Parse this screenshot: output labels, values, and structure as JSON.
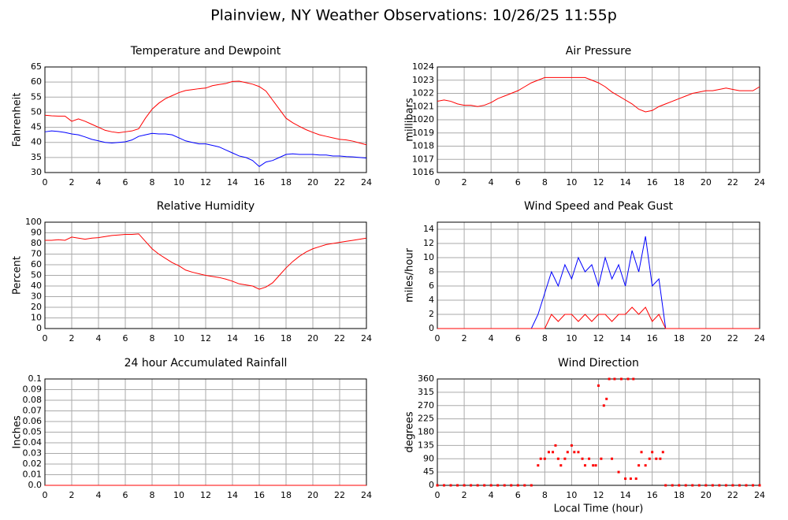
{
  "title": "Plainview, NY Weather Observations: 10/26/25 11:55p",
  "chart_data": [
    {
      "type": "line",
      "title": "Temperature and Dewpoint",
      "ylabel": "Fahrenheit",
      "x": [
        0,
        0.5,
        1,
        1.5,
        2,
        2.5,
        3,
        3.5,
        4,
        4.5,
        5,
        5.5,
        6,
        6.5,
        7,
        7.5,
        8,
        8.5,
        9,
        9.5,
        10,
        10.5,
        11,
        11.5,
        12,
        12.5,
        13,
        13.5,
        14,
        14.5,
        15,
        15.5,
        16,
        16.5,
        17,
        17.5,
        18,
        18.5,
        19,
        19.5,
        20,
        20.5,
        21,
        21.5,
        22,
        22.5,
        23,
        23.5,
        24
      ],
      "series": [
        {
          "color": "#ff0000",
          "values": [
            49,
            48.8,
            48.7,
            48.7,
            47,
            47.8,
            47,
            46,
            45,
            44,
            43.5,
            43.2,
            43.5,
            43.8,
            44.5,
            48,
            51,
            53,
            54.5,
            55.5,
            56.5,
            57.2,
            57.5,
            57.8,
            58,
            58.8,
            59.2,
            59.5,
            60.2,
            60.3,
            59.8,
            59.3,
            58.5,
            57,
            54,
            51,
            48,
            46.5,
            45.3,
            44.2,
            43.3,
            42.5,
            42,
            41.5,
            41,
            40.8,
            40.4,
            39.8,
            39.2
          ]
        },
        {
          "color": "#0000ff",
          "values": [
            43.5,
            43.8,
            43.6,
            43.3,
            42.8,
            42.5,
            41.8,
            41,
            40.5,
            40,
            39.8,
            40,
            40.2,
            40.8,
            42,
            42.5,
            43,
            42.8,
            42.8,
            42.5,
            41.5,
            40.5,
            40,
            39.5,
            39.5,
            39,
            38.5,
            37.5,
            36.5,
            35.5,
            35,
            34,
            32,
            33.5,
            34,
            35,
            36,
            36.2,
            36,
            36,
            36,
            35.8,
            35.8,
            35.5,
            35.5,
            35.3,
            35.2,
            35,
            34.8
          ]
        }
      ],
      "xlim": [
        0,
        24
      ],
      "xticks": [
        0,
        2,
        4,
        6,
        8,
        10,
        12,
        14,
        16,
        18,
        20,
        22,
        24
      ],
      "ylim": [
        30,
        65
      ],
      "yticks": [
        30,
        35,
        40,
        45,
        50,
        55,
        60,
        65
      ],
      "grid": true
    },
    {
      "type": "line",
      "title": "Air Pressure",
      "ylabel": "millibars",
      "x": [
        0,
        0.5,
        1,
        1.5,
        2,
        2.5,
        3,
        3.5,
        4,
        4.5,
        5,
        5.5,
        6,
        6.5,
        7,
        7.5,
        8,
        8.5,
        9,
        9.5,
        10,
        10.5,
        11,
        11.5,
        12,
        12.5,
        13,
        13.5,
        14,
        14.5,
        15,
        15.5,
        16,
        16.5,
        17,
        17.5,
        18,
        18.5,
        19,
        19.5,
        20,
        20.5,
        21,
        21.5,
        22,
        22.5,
        23,
        23.5,
        24
      ],
      "series": [
        {
          "color": "#ff0000",
          "values": [
            1021.4,
            1021.5,
            1021.4,
            1021.2,
            1021.1,
            1021.1,
            1021,
            1021.1,
            1021.3,
            1021.6,
            1021.8,
            1022,
            1022.2,
            1022.5,
            1022.8,
            1023,
            1023.2,
            1023.2,
            1023.2,
            1023.2,
            1023.2,
            1023.2,
            1023.2,
            1023,
            1022.8,
            1022.5,
            1022.1,
            1021.8,
            1021.5,
            1021.2,
            1020.8,
            1020.6,
            1020.7,
            1021,
            1021.2,
            1021.4,
            1021.6,
            1021.8,
            1022,
            1022.1,
            1022.2,
            1022.2,
            1022.3,
            1022.4,
            1022.3,
            1022.2,
            1022.2,
            1022.2,
            1022.5
          ]
        }
      ],
      "xlim": [
        0,
        24
      ],
      "xticks": [
        0,
        2,
        4,
        6,
        8,
        10,
        12,
        14,
        16,
        18,
        20,
        22,
        24
      ],
      "ylim": [
        1016,
        1024
      ],
      "yticks": [
        1016,
        1017,
        1018,
        1019,
        1020,
        1021,
        1022,
        1023,
        1024
      ],
      "grid": true
    },
    {
      "type": "line",
      "title": "Relative Humidity",
      "ylabel": "Percent",
      "x": [
        0,
        0.5,
        1,
        1.5,
        2,
        2.5,
        3,
        3.5,
        4,
        4.5,
        5,
        5.5,
        6,
        6.5,
        7,
        7.5,
        8,
        8.5,
        9,
        9.5,
        10,
        10.5,
        11,
        11.5,
        12,
        12.5,
        13,
        13.5,
        14,
        14.5,
        15,
        15.5,
        16,
        16.5,
        17,
        17.5,
        18,
        18.5,
        19,
        19.5,
        20,
        20.5,
        21,
        21.5,
        22,
        22.5,
        23,
        23.5,
        24
      ],
      "series": [
        {
          "color": "#ff0000",
          "values": [
            83,
            83,
            83.5,
            83,
            86,
            85,
            84,
            85,
            85.5,
            86.5,
            87.5,
            88,
            88.5,
            88.5,
            89,
            82,
            75,
            70,
            66,
            62,
            59,
            55,
            53,
            51.5,
            50,
            49,
            48,
            46.5,
            44.5,
            42,
            41,
            40,
            37,
            39,
            43,
            50,
            57,
            63,
            68,
            72,
            75,
            77,
            79,
            80,
            81,
            82,
            83,
            84,
            85
          ]
        }
      ],
      "xlim": [
        0,
        24
      ],
      "xticks": [
        0,
        2,
        4,
        6,
        8,
        10,
        12,
        14,
        16,
        18,
        20,
        22,
        24
      ],
      "ylim": [
        0,
        100
      ],
      "yticks": [
        0,
        10,
        20,
        30,
        40,
        50,
        60,
        70,
        80,
        90,
        100
      ],
      "grid": true
    },
    {
      "type": "line",
      "title": "Wind Speed and Peak Gust",
      "ylabel": "miles/hour",
      "x": [
        0,
        0.5,
        1,
        1.5,
        2,
        2.5,
        3,
        3.5,
        4,
        4.5,
        5,
        5.5,
        6,
        6.5,
        7,
        7.5,
        8,
        8.5,
        9,
        9.5,
        10,
        10.5,
        11,
        11.5,
        12,
        12.5,
        13,
        13.5,
        14,
        14.5,
        15,
        15.5,
        16,
        16.5,
        17,
        17.5,
        18,
        18.5,
        19,
        19.5,
        20,
        20.5,
        21,
        21.5,
        22,
        22.5,
        23,
        23.5,
        24
      ],
      "series": [
        {
          "color": "#0000ff",
          "values": [
            0,
            0,
            0,
            0,
            0,
            0,
            0,
            0,
            0,
            0,
            0,
            0,
            0,
            0,
            0,
            2,
            5,
            8,
            6,
            9,
            7,
            10,
            8,
            9,
            6,
            10,
            7,
            9,
            6,
            11,
            8,
            13,
            6,
            7,
            0,
            0,
            0,
            0,
            0,
            0,
            0,
            0,
            0,
            0,
            0,
            0,
            0,
            0,
            0
          ]
        },
        {
          "color": "#ff0000",
          "values": [
            0,
            0,
            0,
            0,
            0,
            0,
            0,
            0,
            0,
            0,
            0,
            0,
            0,
            0,
            0,
            0,
            0,
            2,
            1,
            2,
            2,
            1,
            2,
            1,
            2,
            2,
            1,
            2,
            2,
            3,
            2,
            3,
            1,
            2,
            0,
            0,
            0,
            0,
            0,
            0,
            0,
            0,
            0,
            0,
            0,
            0,
            0,
            0,
            0
          ]
        }
      ],
      "xlim": [
        0,
        24
      ],
      "xticks": [
        0,
        2,
        4,
        6,
        8,
        10,
        12,
        14,
        16,
        18,
        20,
        22,
        24
      ],
      "ylim": [
        0,
        15
      ],
      "yticks": [
        0,
        2,
        4,
        6,
        8,
        10,
        12,
        14
      ],
      "grid": true
    },
    {
      "type": "line",
      "title": "24 hour Accumulated Rainfall",
      "ylabel": "Inches",
      "x": [
        0,
        24
      ],
      "series": [
        {
          "color": "#ff0000",
          "values": [
            0,
            0
          ]
        }
      ],
      "xlim": [
        0,
        24
      ],
      "xticks": [
        0,
        2,
        4,
        6,
        8,
        10,
        12,
        14,
        16,
        18,
        20,
        22,
        24
      ],
      "ylim": [
        0,
        0.1
      ],
      "yticks": [
        {
          "value": 0,
          "label": "0.0"
        },
        0.01,
        0.02,
        0.03,
        0.04,
        0.05,
        0.06,
        0.07,
        0.08,
        0.09,
        0.1
      ],
      "grid": true
    },
    {
      "type": "scatter",
      "title": "Wind Direction",
      "ylabel": "degrees",
      "xlabel": "Local Time (hour)",
      "x": [
        0,
        0.5,
        1,
        1.5,
        2,
        2.5,
        3,
        3.5,
        4,
        4.5,
        5,
        5.5,
        6,
        6.5,
        7,
        7.5,
        7.7,
        8,
        8.3,
        8.6,
        8.8,
        9,
        9.2,
        9.5,
        9.7,
        10,
        10.2,
        10.5,
        10.8,
        11,
        11.3,
        11.6,
        11.8,
        12,
        12.2,
        12.4,
        12.6,
        12.8,
        13,
        13.2,
        13.5,
        13.7,
        14,
        14.2,
        14.4,
        14.6,
        14.8,
        15,
        15.2,
        15.5,
        15.8,
        16,
        16.3,
        16.6,
        16.8,
        17,
        17.5,
        18,
        18.5,
        19,
        19.5,
        20,
        20.5,
        21,
        21.5,
        22,
        22.5,
        23,
        23.5,
        24
      ],
      "series": [
        {
          "color": "#ff0000",
          "values": [
            0,
            0,
            0,
            0,
            0,
            0,
            0,
            0,
            0,
            0,
            0,
            0,
            0,
            0,
            0,
            67.5,
            90,
            90,
            112.5,
            112.5,
            135,
            90,
            67.5,
            90,
            112.5,
            135,
            112.5,
            112.5,
            90,
            67.5,
            90,
            67.5,
            67.5,
            337.5,
            90,
            270,
            292.5,
            360,
            90,
            360,
            45,
            360,
            22.5,
            360,
            22.5,
            360,
            22.5,
            67.5,
            112.5,
            67.5,
            90,
            112.5,
            90,
            90,
            112.5,
            0,
            0,
            0,
            0,
            0,
            0,
            0,
            0,
            0,
            0,
            0,
            0,
            0,
            0,
            0
          ]
        }
      ],
      "xlim": [
        0,
        24
      ],
      "xticks": [
        0,
        2,
        4,
        6,
        8,
        10,
        12,
        14,
        16,
        18,
        20,
        22,
        24
      ],
      "ylim": [
        0,
        360
      ],
      "yticks": [
        0,
        45,
        90,
        135,
        180,
        225,
        270,
        315,
        360
      ],
      "grid": true
    }
  ]
}
